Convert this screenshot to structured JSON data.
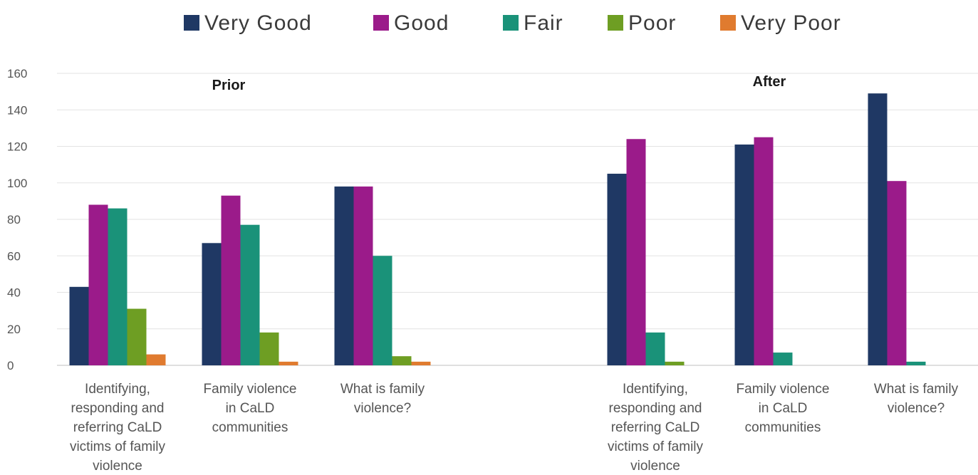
{
  "chart_data": {
    "type": "bar",
    "title": "",
    "xlabel": "",
    "ylabel": "",
    "ylim": [
      0,
      160
    ],
    "yticks": [
      0,
      20,
      40,
      60,
      80,
      100,
      120,
      140,
      160
    ],
    "grid": true,
    "legend_position": "top",
    "series": [
      {
        "name": "Very Good",
        "color": "#1f3864"
      },
      {
        "name": "Good",
        "color": "#9b1b8a"
      },
      {
        "name": "Fair",
        "color": "#1a9279"
      },
      {
        "name": "Poor",
        "color": "#6e9e23"
      },
      {
        "name": "Very Poor",
        "color": "#e07b2f"
      }
    ],
    "groups": [
      {
        "title": "Prior",
        "categories": [
          {
            "label_lines": [
              "Identifying,",
              "responding and",
              "referring CaLD",
              "victims of family",
              "violence"
            ],
            "values": [
              43,
              88,
              86,
              31,
              6
            ]
          },
          {
            "label_lines": [
              "Family violence",
              "in CaLD",
              "communities"
            ],
            "values": [
              67,
              93,
              77,
              18,
              2
            ]
          },
          {
            "label_lines": [
              "What is family",
              "violence?"
            ],
            "values": [
              98,
              98,
              60,
              5,
              2
            ]
          }
        ]
      },
      {
        "title": "After",
        "categories": [
          {
            "label_lines": [
              "Identifying,",
              "responding and",
              "referring CaLD",
              "victims of family",
              "violence"
            ],
            "values": [
              105,
              124,
              18,
              2,
              0
            ]
          },
          {
            "label_lines": [
              "Family violence",
              "in CaLD",
              "communities"
            ],
            "values": [
              121,
              125,
              7,
              0,
              0
            ]
          },
          {
            "label_lines": [
              "What is family",
              "violence?"
            ],
            "values": [
              149,
              101,
              2,
              0,
              0
            ]
          }
        ]
      }
    ]
  }
}
